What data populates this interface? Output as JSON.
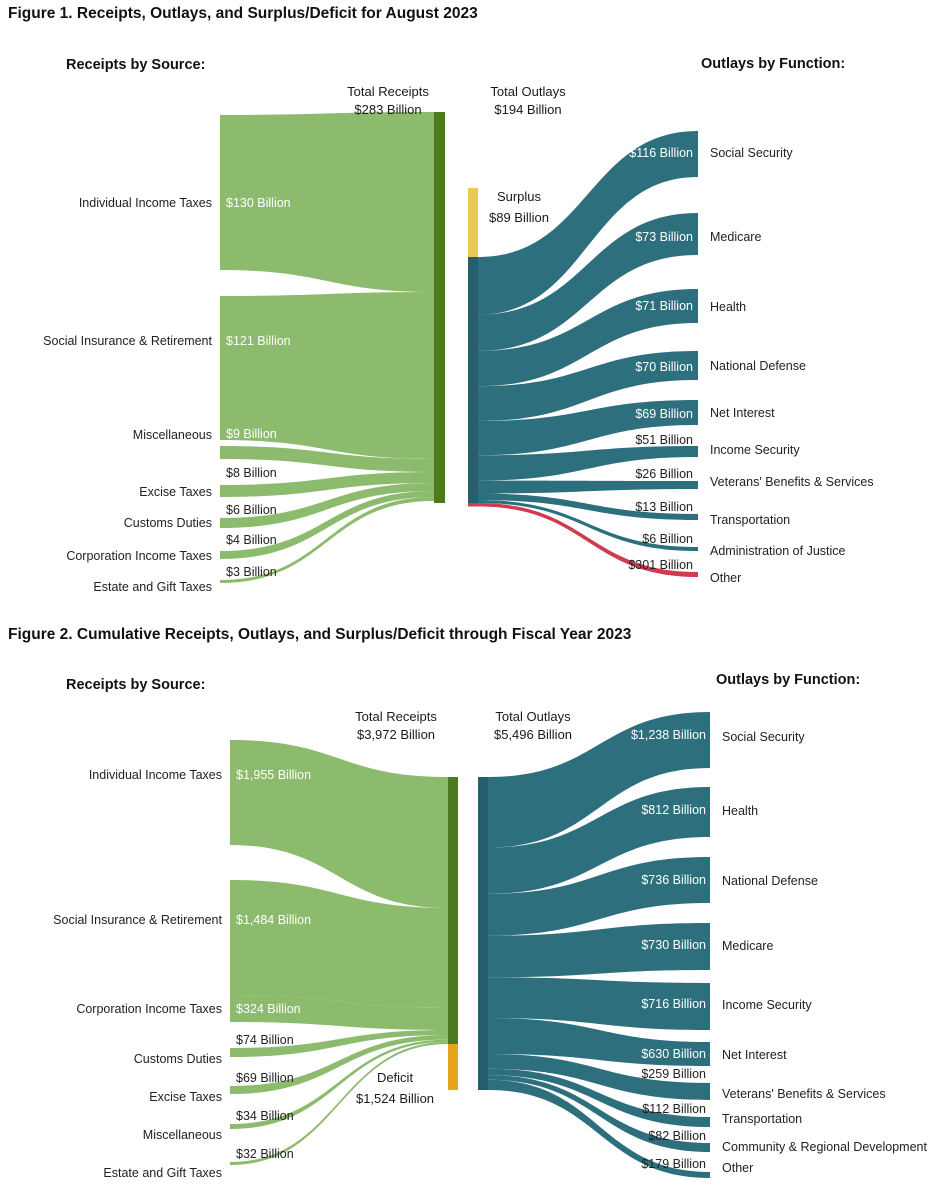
{
  "colors": {
    "flow_green": "#8CBB6E",
    "node_green": "#4E7A1E",
    "flow_teal": "#2E6F7E",
    "node_teal": "#265E6C",
    "surplus_yellow": "#EDC94F",
    "deficit_gold": "#E7A51C",
    "negative_red": "#D23A4E",
    "text_dark": "#222222",
    "text_white": "#ffffff"
  },
  "figure1": {
    "title": "Figure 1. Receipts, Outlays, and Surplus/Deficit for August 2023",
    "receipts_heading": "Receipts by Source:",
    "outlays_heading": "Outlays by Function:",
    "total_receipts": {
      "label": "Total Receipts",
      "value": "$283 Billion"
    },
    "total_outlays": {
      "label": "Total Outlays",
      "value": "$194 Billion"
    },
    "balance": {
      "label": "Surplus",
      "value": "$89 Billion"
    },
    "sources": [
      {
        "name": "Individual Income Taxes",
        "value_label": "$130 Billion"
      },
      {
        "name": "Social Insurance & Retirement",
        "value_label": "$121 Billion"
      },
      {
        "name": "Miscellaneous",
        "value_label": "$9 Billion"
      },
      {
        "name": "Excise Taxes",
        "value_label": "$8 Billion"
      },
      {
        "name": "Customs Duties",
        "value_label": "$6 Billion"
      },
      {
        "name": "Corporation Income Taxes",
        "value_label": "$4 Billion"
      },
      {
        "name": "Estate and Gift Taxes",
        "value_label": "$3 Billion"
      }
    ],
    "functions": [
      {
        "name": "Social Security",
        "value_label": "$116 Billion"
      },
      {
        "name": "Medicare",
        "value_label": "$73 Billion"
      },
      {
        "name": "Health",
        "value_label": "$71 Billion"
      },
      {
        "name": "National Defense",
        "value_label": "$70 Billion"
      },
      {
        "name": "Net Interest",
        "value_label": "$69 Billion"
      },
      {
        "name": "Income Security",
        "value_label": "$51 Billion"
      },
      {
        "name": "Veterans' Benefits & Services",
        "value_label": "$26 Billion"
      },
      {
        "name": "Transportation",
        "value_label": "$13 Billion"
      },
      {
        "name": "Administration of Justice",
        "value_label": "$6 Billion"
      },
      {
        "name": "Other",
        "value_label": "$301 Billion"
      }
    ]
  },
  "figure2": {
    "title": "Figure 2. Cumulative Receipts, Outlays, and Surplus/Deficit through Fiscal Year 2023",
    "receipts_heading": "Receipts by Source:",
    "outlays_heading": "Outlays by Function:",
    "total_receipts": {
      "label": "Total Receipts",
      "value": "$3,972 Billion"
    },
    "total_outlays": {
      "label": "Total Outlays",
      "value": "$5,496 Billion"
    },
    "balance": {
      "label": "Deficit",
      "value": "$1,524 Billion"
    },
    "sources": [
      {
        "name": "Individual Income Taxes",
        "value_label": "$1,955 Billion"
      },
      {
        "name": "Social Insurance & Retirement",
        "value_label": "$1,484 Billion"
      },
      {
        "name": "Corporation Income Taxes",
        "value_label": "$324 Billion"
      },
      {
        "name": "Customs Duties",
        "value_label": "$74 Billion"
      },
      {
        "name": "Excise Taxes",
        "value_label": "$69 Billion"
      },
      {
        "name": "Miscellaneous",
        "value_label": "$34 Billion"
      },
      {
        "name": "Estate and Gift Taxes",
        "value_label": "$32 Billion"
      }
    ],
    "functions": [
      {
        "name": "Social Security",
        "value_label": "$1,238 Billion"
      },
      {
        "name": "Health",
        "value_label": "$812 Billion"
      },
      {
        "name": "National Defense",
        "value_label": "$736 Billion"
      },
      {
        "name": "Medicare",
        "value_label": "$730 Billion"
      },
      {
        "name": "Income Security",
        "value_label": "$716 Billion"
      },
      {
        "name": "Net Interest",
        "value_label": "$630 Billion"
      },
      {
        "name": "Veterans' Benefits & Services",
        "value_label": "$259 Billion"
      },
      {
        "name": "Transportation",
        "value_label": "$112 Billion"
      },
      {
        "name": "Community & Regional Development",
        "value_label": "$82 Billion"
      },
      {
        "name": "Other",
        "value_label": "$179 Billion"
      }
    ]
  },
  "chart_data": [
    {
      "type": "sankey",
      "title": "Figure 1. Receipts, Outlays, and Surplus/Deficit for August 2023",
      "unit": "$ Billion",
      "totals": {
        "receipts": 283,
        "outlays": 194,
        "surplus": 89
      },
      "receipts_by_source": [
        [
          "Individual Income Taxes",
          130
        ],
        [
          "Social Insurance & Retirement",
          121
        ],
        [
          "Miscellaneous",
          9
        ],
        [
          "Excise Taxes",
          8
        ],
        [
          "Customs Duties",
          6
        ],
        [
          "Corporation Income Taxes",
          4
        ],
        [
          "Estate and Gift Taxes",
          3
        ]
      ],
      "outlays_by_function": [
        [
          "Social Security",
          116
        ],
        [
          "Medicare",
          73
        ],
        [
          "Health",
          71
        ],
        [
          "National Defense",
          70
        ],
        [
          "Net Interest",
          69
        ],
        [
          "Income Security",
          51
        ],
        [
          "Veterans' Benefits & Services",
          26
        ],
        [
          "Transportation",
          13
        ],
        [
          "Administration of Justice",
          6
        ],
        [
          "Other",
          301
        ]
      ],
      "notes": "Other outlay flow drawn in red indicating a negative/offsetting amount; surplus shown as yellow segment atop outlays node"
    },
    {
      "type": "sankey",
      "title": "Figure 2. Cumulative Receipts, Outlays, and Surplus/Deficit through Fiscal Year 2023",
      "unit": "$ Billion",
      "totals": {
        "receipts": 3972,
        "outlays": 5496,
        "deficit": 1524
      },
      "receipts_by_source": [
        [
          "Individual Income Taxes",
          1955
        ],
        [
          "Social Insurance & Retirement",
          1484
        ],
        [
          "Corporation Income Taxes",
          324
        ],
        [
          "Customs Duties",
          74
        ],
        [
          "Excise Taxes",
          69
        ],
        [
          "Miscellaneous",
          34
        ],
        [
          "Estate and Gift Taxes",
          32
        ]
      ],
      "outlays_by_function": [
        [
          "Social Security",
          1238
        ],
        [
          "Health",
          812
        ],
        [
          "National Defense",
          736
        ],
        [
          "Medicare",
          730
        ],
        [
          "Income Security",
          716
        ],
        [
          "Net Interest",
          630
        ],
        [
          "Veterans' Benefits & Services",
          259
        ],
        [
          "Transportation",
          112
        ],
        [
          "Community & Regional Development",
          82
        ],
        [
          "Other",
          179
        ]
      ],
      "notes": "Deficit shown as gold segment below receipts node"
    }
  ]
}
